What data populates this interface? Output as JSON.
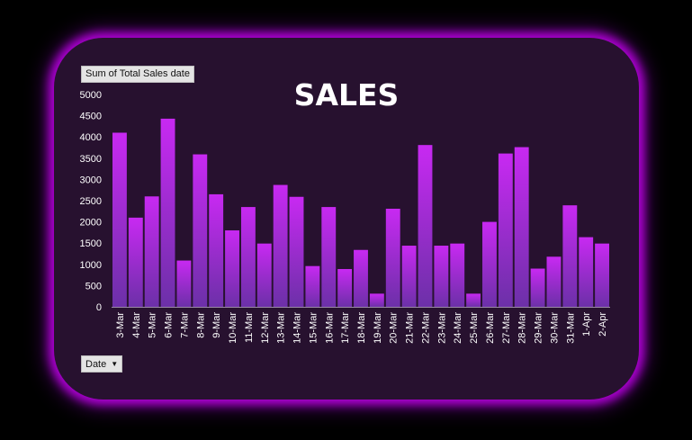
{
  "pivot": {
    "field_button_label": "Sum of Total Sales date",
    "axis_field_label": "Date"
  },
  "colors": {
    "page_background": "#000000",
    "panel_background": "#27112f",
    "glow": "#b400e0",
    "bar_top": "#c829f2",
    "bar_bottom": "#6c30a8"
  },
  "chart_data": {
    "type": "bar",
    "title": "SALES",
    "xlabel": "",
    "ylabel": "",
    "ylim": [
      0,
      5000
    ],
    "yticks": [
      0,
      500,
      1000,
      1500,
      2000,
      2500,
      3000,
      3500,
      4000,
      4500,
      5000
    ],
    "grid": false,
    "legend": "none",
    "categories": [
      "3-Mar",
      "4-Mar",
      "5-Mar",
      "6-Mar",
      "7-Mar",
      "8-Mar",
      "9-Mar",
      "10-Mar",
      "11-Mar",
      "12-Mar",
      "13-Mar",
      "14-Mar",
      "15-Mar",
      "16-Mar",
      "17-Mar",
      "18-Mar",
      "19-Mar",
      "20-Mar",
      "21-Mar",
      "22-Mar",
      "23-Mar",
      "24-Mar",
      "25-Mar",
      "26-Mar",
      "27-Mar",
      "28-Mar",
      "29-Mar",
      "30-Mar",
      "31-Mar",
      "1-Apr",
      "2-Apr"
    ],
    "values": [
      4100,
      2100,
      2600,
      4430,
      1090,
      3590,
      2650,
      1800,
      2350,
      1490,
      2870,
      2590,
      960,
      2350,
      890,
      1340,
      310,
      2310,
      1440,
      3810,
      1440,
      1490,
      310,
      2000,
      3610,
      3760,
      900,
      1180,
      2390,
      1640,
      1490
    ]
  }
}
